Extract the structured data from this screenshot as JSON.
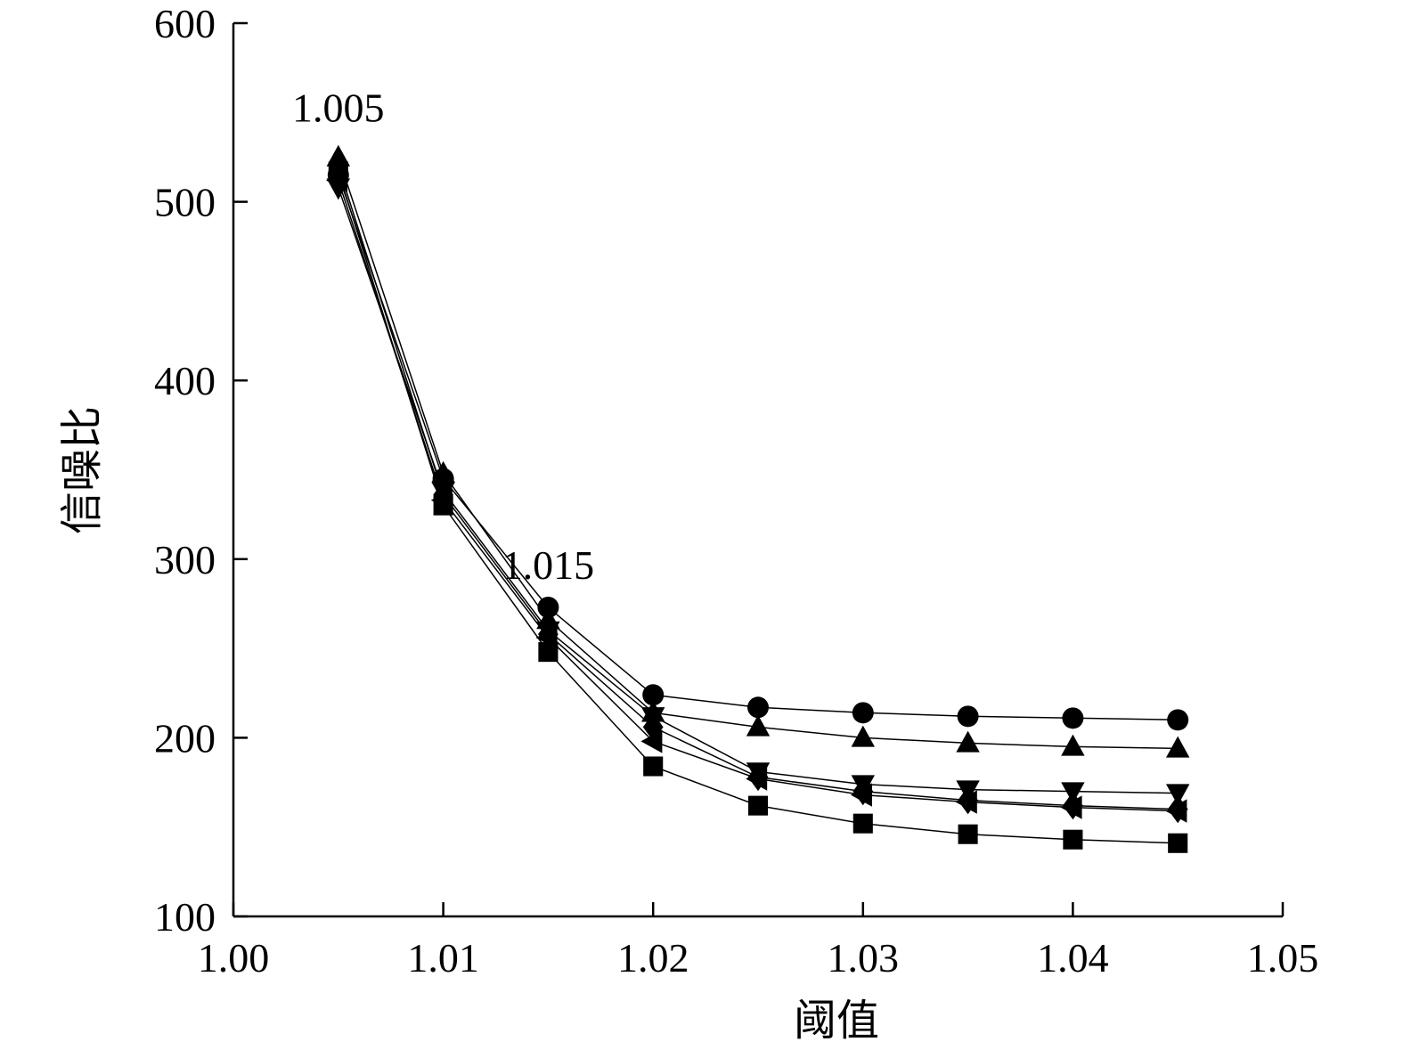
{
  "chart_data": {
    "type": "line",
    "title": "",
    "xlabel": "阈值",
    "ylabel": "信噪比",
    "xlim": [
      1.0,
      1.05
    ],
    "ylim": [
      100,
      600
    ],
    "x_ticks": [
      "1.00",
      "1.01",
      "1.02",
      "1.03",
      "1.04",
      "1.05"
    ],
    "y_ticks": [
      "100",
      "200",
      "300",
      "400",
      "500",
      "600"
    ],
    "grid": false,
    "legend": "none",
    "x": [
      1.005,
      1.01,
      1.015,
      1.02,
      1.025,
      1.03,
      1.035,
      1.04,
      1.045
    ],
    "series": [
      {
        "marker": "circle",
        "values": [
          515,
          345,
          273,
          224,
          217,
          214,
          212,
          211,
          210
        ]
      },
      {
        "marker": "triangle-up",
        "values": [
          525,
          348,
          266,
          214,
          206,
          200,
          197,
          195,
          194
        ]
      },
      {
        "marker": "triangle-down",
        "values": [
          508,
          338,
          260,
          212,
          181,
          174,
          171,
          170,
          169
        ]
      },
      {
        "marker": "diamond",
        "values": [
          520,
          336,
          258,
          206,
          178,
          170,
          165,
          162,
          160
        ]
      },
      {
        "marker": "triangle-left",
        "values": [
          512,
          333,
          256,
          198,
          177,
          168,
          164,
          161,
          159
        ]
      },
      {
        "marker": "square",
        "values": [
          517,
          330,
          248,
          184,
          162,
          152,
          146,
          143,
          141
        ]
      }
    ],
    "annotations": [
      {
        "text": "1.005",
        "x": 1.005,
        "y": 545
      },
      {
        "text": "1.015",
        "x": 1.015,
        "y": 289
      }
    ]
  }
}
